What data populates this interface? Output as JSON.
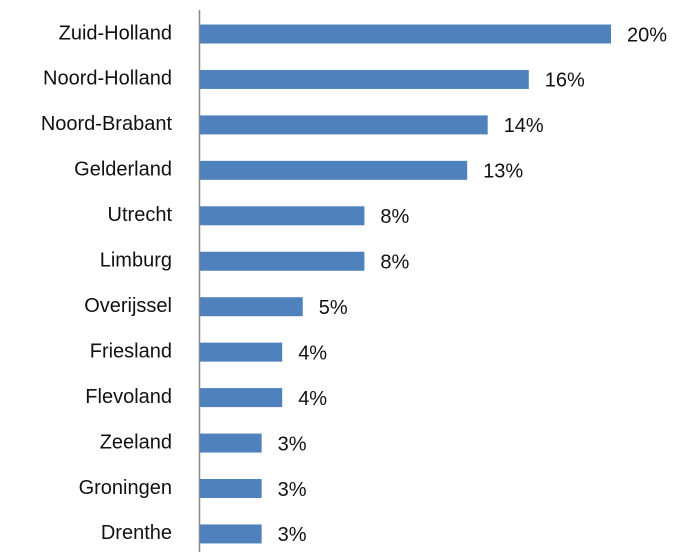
{
  "chart_data": {
    "type": "hbar",
    "categories": [
      "Zuid-Holland",
      "Noord-Holland",
      "Noord-Brabant",
      "Gelderland",
      "Utrecht",
      "Limburg",
      "Overijssel",
      "Friesland",
      "Flevoland",
      "Zeeland",
      "Groningen",
      "Drenthe"
    ],
    "values": [
      20,
      16,
      14,
      13,
      8,
      8,
      5,
      4,
      4,
      3,
      3,
      3
    ],
    "value_labels": [
      "20%",
      "16%",
      "14%",
      "13%",
      "8%",
      "8%",
      "5%",
      "4%",
      "4%",
      "3%",
      "3%",
      "3%"
    ],
    "color": "#4f81bd"
  }
}
